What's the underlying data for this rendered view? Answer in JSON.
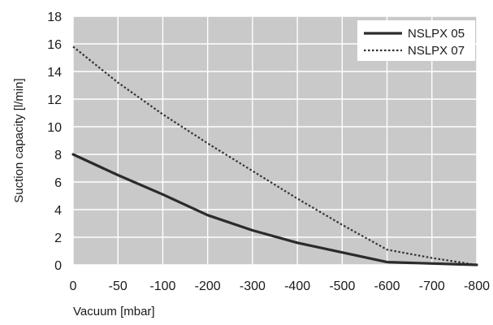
{
  "chart_data": {
    "type": "line",
    "title": "",
    "xlabel": "Vacuum [mbar]",
    "ylabel": "Suction capacity [l/min]",
    "x_ticks": [
      "0",
      "-50",
      "-100",
      "-200",
      "-300",
      "-400",
      "-500",
      "-600",
      "-700",
      "-800"
    ],
    "y_ticks": [
      0,
      2,
      4,
      6,
      8,
      10,
      12,
      14,
      16,
      18
    ],
    "ylim": [
      0,
      18
    ],
    "grid": true,
    "legend_position": "top-right",
    "series": [
      {
        "name": "NSLPX 05",
        "style": "solid",
        "color": "#2b2b2b",
        "values": [
          8.0,
          6.5,
          5.1,
          3.6,
          2.5,
          1.6,
          0.9,
          0.2,
          0.1,
          0.0
        ]
      },
      {
        "name": "NSLPX 07",
        "style": "dotted",
        "color": "#333333",
        "values": [
          15.8,
          13.2,
          10.9,
          8.8,
          6.8,
          4.8,
          2.9,
          1.1,
          0.5,
          0.0
        ]
      }
    ],
    "colors": {
      "plot_background": "#c9c9c9",
      "gridline": "#ffffff",
      "legend_background": "#ffffff"
    }
  }
}
